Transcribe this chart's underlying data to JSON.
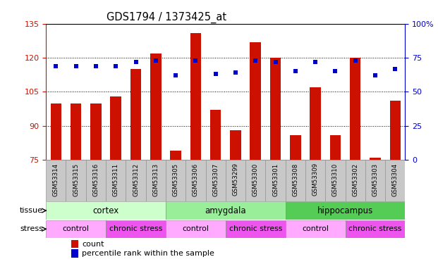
{
  "title": "GDS1794 / 1373425_at",
  "samples": [
    "GSM53314",
    "GSM53315",
    "GSM53316",
    "GSM53311",
    "GSM53312",
    "GSM53313",
    "GSM53305",
    "GSM53306",
    "GSM53307",
    "GSM53299",
    "GSM53300",
    "GSM53301",
    "GSM53308",
    "GSM53309",
    "GSM53310",
    "GSM53302",
    "GSM53303",
    "GSM53304"
  ],
  "counts": [
    100,
    100,
    100,
    103,
    115,
    122,
    79,
    131,
    97,
    88,
    127,
    120,
    86,
    107,
    86,
    120,
    76,
    101
  ],
  "percentiles": [
    69,
    69,
    69,
    69,
    72,
    73,
    62,
    73,
    63,
    64,
    73,
    72,
    65,
    72,
    65,
    73,
    62,
    67
  ],
  "ylim_left": [
    75,
    135
  ],
  "ylim_right": [
    0,
    100
  ],
  "yticks_left": [
    75,
    90,
    105,
    120,
    135
  ],
  "yticks_right": [
    0,
    25,
    50,
    75,
    100
  ],
  "bar_color": "#cc1100",
  "dot_color": "#0000cc",
  "tick_bg_color": "#c8c8c8",
  "tissue_groups": [
    {
      "label": "cortex",
      "start": 0,
      "end": 6,
      "color": "#ccffcc"
    },
    {
      "label": "amygdala",
      "start": 6,
      "end": 12,
      "color": "#99ee99"
    },
    {
      "label": "hippocampus",
      "start": 12,
      "end": 18,
      "color": "#55cc55"
    }
  ],
  "stress_groups": [
    {
      "label": "control",
      "start": 0,
      "end": 3,
      "color": "#ffaaff"
    },
    {
      "label": "chronic stress",
      "start": 3,
      "end": 6,
      "color": "#ee55ee"
    },
    {
      "label": "control",
      "start": 6,
      "end": 9,
      "color": "#ffaaff"
    },
    {
      "label": "chronic stress",
      "start": 9,
      "end": 12,
      "color": "#ee55ee"
    },
    {
      "label": "control",
      "start": 12,
      "end": 15,
      "color": "#ffaaff"
    },
    {
      "label": "chronic stress",
      "start": 15,
      "end": 18,
      "color": "#ee55ee"
    }
  ],
  "legend_items": [
    {
      "label": "count",
      "color": "#cc1100"
    },
    {
      "label": "percentile rank within the sample",
      "color": "#0000cc"
    }
  ]
}
